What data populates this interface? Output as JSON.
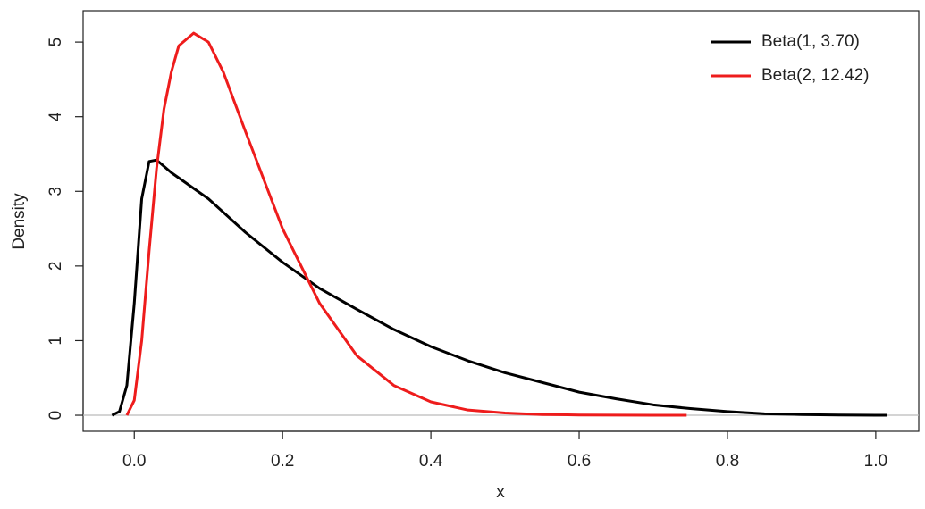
{
  "chart_data": {
    "type": "line",
    "x_label": "x",
    "y_label": "Density",
    "xlim": [
      -0.069,
      1.058
    ],
    "ylim": [
      -0.215,
      5.42
    ],
    "xticks": [
      {
        "value": 0,
        "label": "0.0"
      },
      0.2,
      0.4,
      0.6,
      0.8,
      {
        "value": 1,
        "label": "1.0"
      }
    ],
    "yticks": [
      0,
      1,
      2,
      3,
      4,
      5
    ],
    "hline": 0,
    "hline_color": "#bbbbbb",
    "legend": "top-right",
    "series": [
      {
        "name": "Beta(1, 3.70)",
        "color": "#000000",
        "x": [
          -0.03,
          -0.02,
          -0.01,
          0,
          0.01,
          0.02,
          0.03,
          0.05,
          0.1,
          0.15,
          0.2,
          0.25,
          0.3,
          0.35,
          0.4,
          0.45,
          0.5,
          0.55,
          0.6,
          0.65,
          0.7,
          0.75,
          0.8,
          0.85,
          0.9,
          0.95,
          1.0,
          1.015
        ],
        "values": [
          0,
          0.05,
          0.4,
          1.5,
          2.9,
          3.4,
          3.42,
          3.25,
          2.9,
          2.45,
          2.05,
          1.7,
          1.42,
          1.15,
          0.92,
          0.73,
          0.57,
          0.44,
          0.31,
          0.22,
          0.14,
          0.09,
          0.05,
          0.02,
          0.01,
          0.004,
          0.001,
          0
        ]
      },
      {
        "name": "Beta(2, 12.42)",
        "color": "#ee1c1c",
        "x": [
          -0.01,
          0,
          0.01,
          0.02,
          0.03,
          0.04,
          0.05,
          0.06,
          0.08,
          0.1,
          0.12,
          0.15,
          0.2,
          0.25,
          0.3,
          0.35,
          0.4,
          0.45,
          0.5,
          0.55,
          0.6,
          0.65,
          0.7,
          0.745
        ],
        "values": [
          0,
          0.2,
          1.0,
          2.2,
          3.3,
          4.1,
          4.6,
          4.95,
          5.12,
          5.0,
          4.6,
          3.8,
          2.5,
          1.5,
          0.8,
          0.4,
          0.18,
          0.07,
          0.03,
          0.01,
          0.004,
          0.002,
          0.001,
          0
        ]
      }
    ]
  }
}
